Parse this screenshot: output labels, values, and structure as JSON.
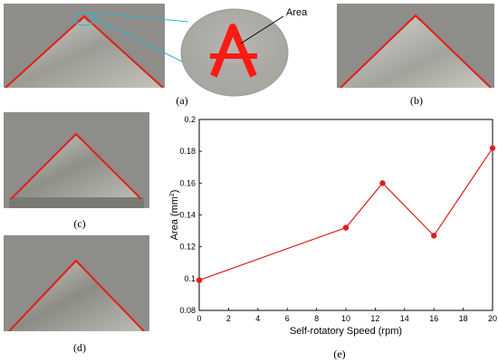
{
  "panels": {
    "a": "(a)",
    "b": "(b)",
    "c": "(c)",
    "d": "(d)",
    "e": "(e)"
  },
  "callout": {
    "label": "Area"
  },
  "colors": {
    "background_gray": "#8e8d89",
    "metal_light": "#c9c9c2",
    "metal_dark": "#6f6f69",
    "outline_red": "#e0201c",
    "callout_line": "#2fb5d3"
  },
  "chart_data": {
    "type": "line",
    "x": [
      0,
      10,
      12.5,
      16,
      20
    ],
    "series": [
      {
        "values": [
          0.099,
          0.132,
          0.16,
          0.127,
          0.182
        ],
        "color": "#e0201c"
      }
    ],
    "xlabel": "Self-rotatory Speed (rpm)",
    "ylabel": "Area (mm",
    "ylabel_sup": "2",
    "ylabel_close": ")",
    "xlim": [
      0,
      20
    ],
    "ylim": [
      0.08,
      0.2
    ],
    "xticks": [
      "0",
      "2",
      "4",
      "6",
      "8",
      "10",
      "12",
      "14",
      "16",
      "18",
      "20"
    ],
    "yticks": [
      "0.08",
      "0.1",
      "0.12",
      "0.14",
      "0.16",
      "0.18",
      "0.2"
    ],
    "grid": false,
    "legend": "none"
  }
}
